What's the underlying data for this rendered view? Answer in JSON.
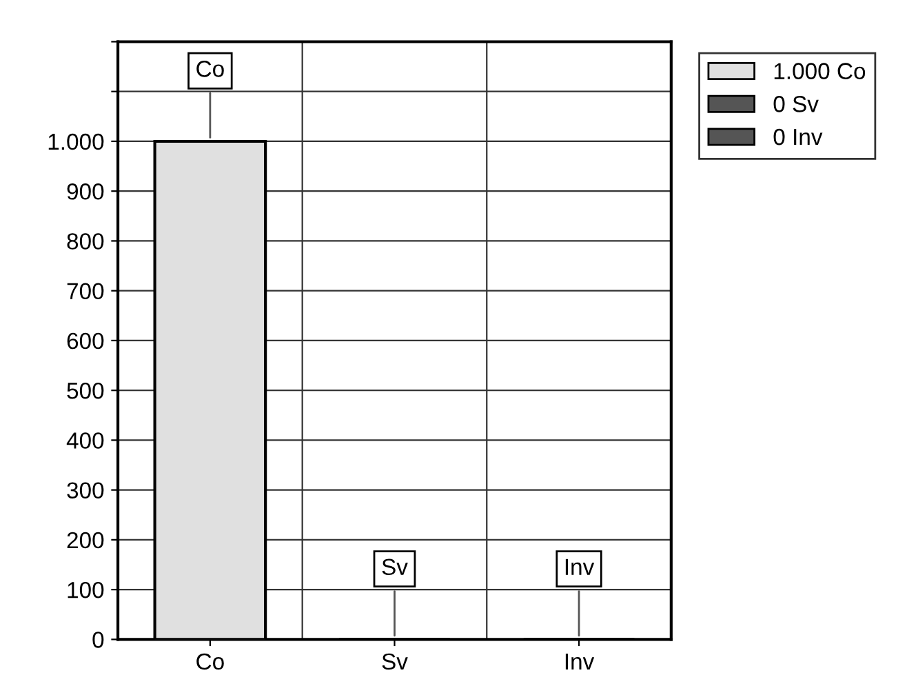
{
  "chart_data": {
    "type": "bar",
    "categories": [
      "Co",
      "Sv",
      "Inv"
    ],
    "series": [
      {
        "name": "1.000 Co",
        "color": "#e0e0e0",
        "values": [
          1000,
          null,
          null
        ]
      },
      {
        "name": "0 Sv",
        "color": "#555555",
        "values": [
          null,
          0,
          null
        ]
      },
      {
        "name": "0 Inv",
        "color": "#555555",
        "values": [
          null,
          null,
          0
        ]
      }
    ],
    "ylim": [
      0,
      1200
    ],
    "yticks": [
      0,
      100,
      200,
      300,
      400,
      500,
      600,
      700,
      800,
      900,
      {
        "value": 1000,
        "label": "1.000"
      },
      {
        "value": 1100,
        "label": null
      },
      {
        "value": 1200,
        "label": null
      }
    ],
    "annotations": [
      {
        "text": "Co",
        "x": "Co",
        "y": 1000
      },
      {
        "text": "Sv",
        "x": "Sv",
        "y": 0
      },
      {
        "text": "Inv",
        "x": "Inv",
        "y": 0
      }
    ],
    "grid": true,
    "legend": "top right"
  }
}
